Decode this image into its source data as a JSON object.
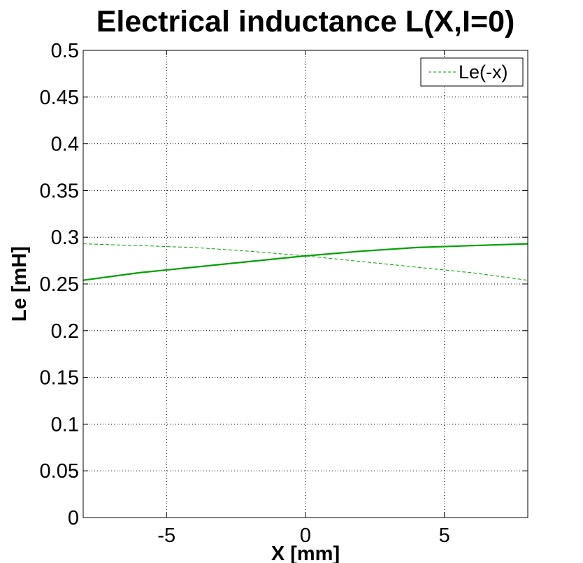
{
  "chart_data": {
    "type": "line",
    "title": "Electrical inductance L(X,I=0)",
    "xlabel": "X [mm]",
    "ylabel": "Le [mH]",
    "xlim": [
      -8,
      8
    ],
    "ylim": [
      0,
      0.5
    ],
    "x_ticks": [
      -5,
      0,
      5
    ],
    "x_tick_labels": [
      "-5",
      "0",
      "5"
    ],
    "y_ticks": [
      0,
      0.05,
      0.1,
      0.15,
      0.2,
      0.25,
      0.3,
      0.35,
      0.4,
      0.45,
      0.5
    ],
    "y_tick_labels": [
      "0",
      "0.05",
      "0.1",
      "0.15",
      "0.2",
      "0.25",
      "0.3",
      "0.35",
      "0.4",
      "0.45",
      "0.5"
    ],
    "grid": true,
    "legend_position": "top-right",
    "x": [
      -8,
      -6,
      -4,
      -2,
      0,
      2,
      4,
      6,
      8
    ],
    "series": [
      {
        "color": "#00a000",
        "style": "solid",
        "values": [
          0.254,
          0.262,
          0.268,
          0.274,
          0.28,
          0.285,
          0.289,
          0.291,
          0.293
        ]
      },
      {
        "name": "Le(-x)",
        "color": "#00a000",
        "style": "dashed",
        "values": [
          0.293,
          0.291,
          0.289,
          0.285,
          0.28,
          0.274,
          0.268,
          0.262,
          0.254
        ]
      }
    ]
  }
}
